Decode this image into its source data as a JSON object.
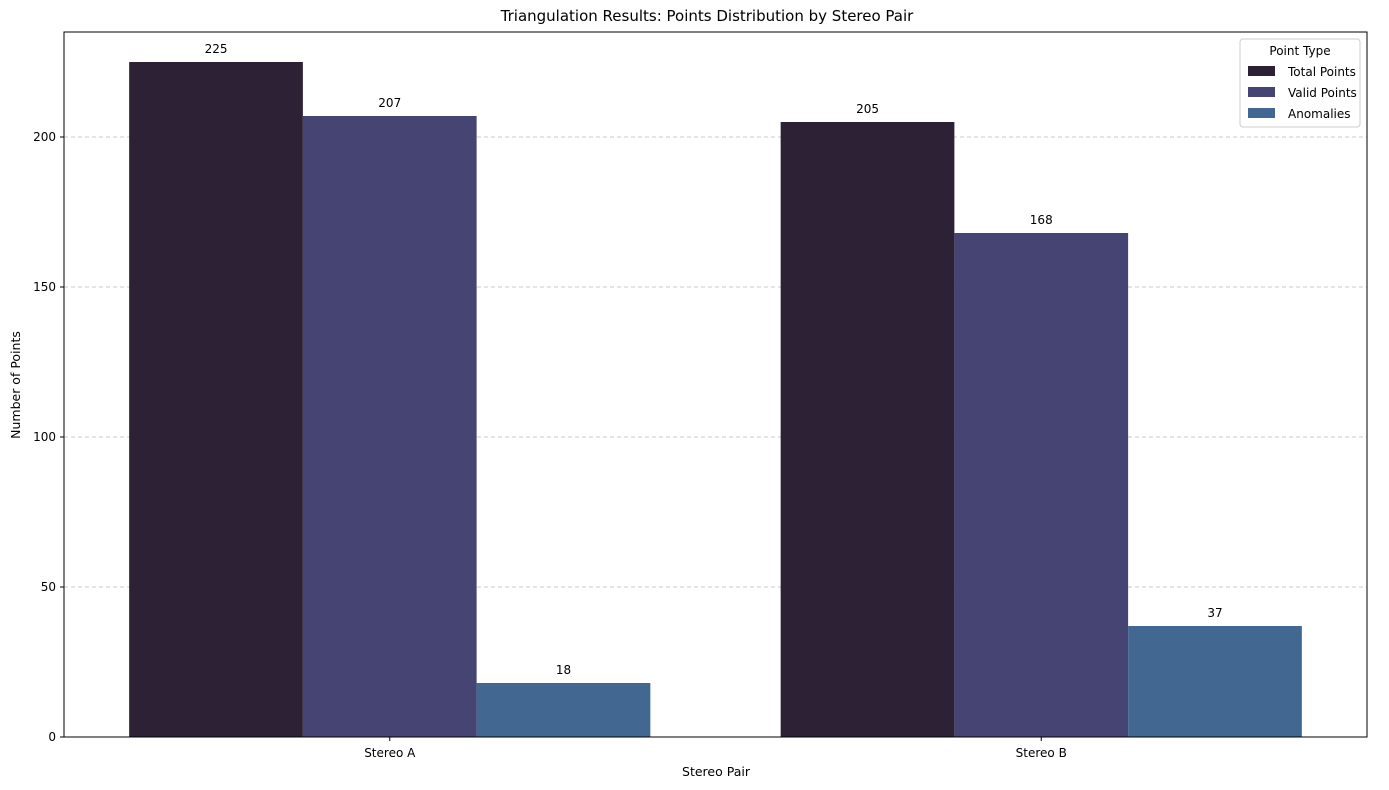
{
  "chart_data": {
    "type": "bar",
    "title": "Triangulation Results: Points Distribution by Stereo Pair",
    "xlabel": "Stereo Pair",
    "ylabel": "Number of Points",
    "categories": [
      "Stereo A",
      "Stereo B"
    ],
    "series": [
      {
        "name": "Total Points",
        "values": [
          225,
          205
        ],
        "color": "#2d2235"
      },
      {
        "name": "Valid Points",
        "values": [
          207,
          168
        ],
        "color": "#464473"
      },
      {
        "name": "Anomalies",
        "values": [
          18,
          37
        ],
        "color": "#426791"
      }
    ],
    "ylim": [
      0,
      235
    ],
    "yticks": [
      0,
      50,
      100,
      150,
      200
    ],
    "grid": "y-dashed",
    "legend": {
      "title": "Point Type",
      "placement": "top-right"
    }
  }
}
